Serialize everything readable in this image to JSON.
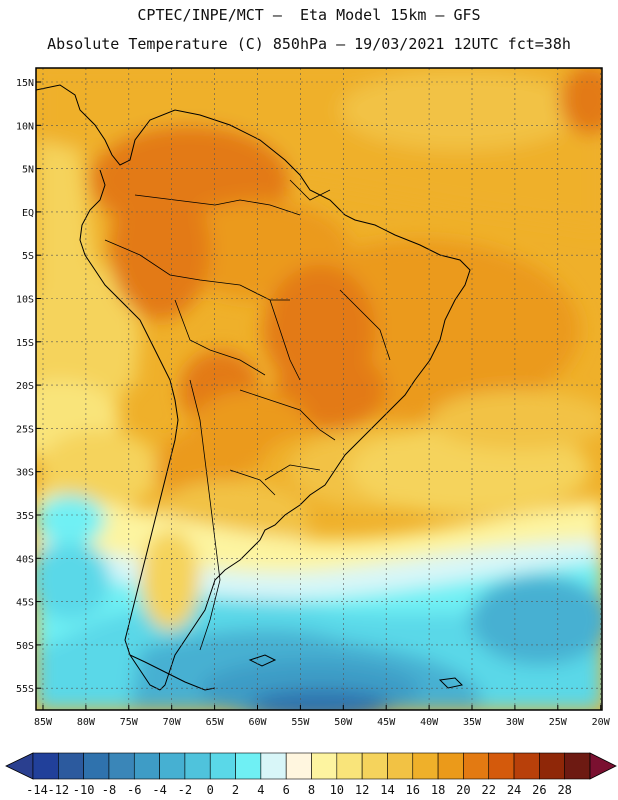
{
  "header": {
    "line1": "CPTEC/INPE/MCT –  Eta Model 15km – GFS",
    "line2": "Absolute Temperature (C) 850hPa – 19/03/2021 12UTC fct=38h"
  },
  "map": {
    "region": "South America",
    "lat_labels": [
      "15N",
      "10N",
      "5N",
      "EQ",
      "5S",
      "10S",
      "15S",
      "20S",
      "25S",
      "30S",
      "35S",
      "40S",
      "45S",
      "50S",
      "55S"
    ],
    "lon_labels": [
      "85W",
      "80W",
      "75W",
      "70W",
      "65W",
      "60W",
      "55W",
      "50W",
      "45W",
      "40W",
      "35W",
      "30W",
      "25W",
      "20W"
    ]
  },
  "colorbar": {
    "labels": [
      "-14",
      "-12",
      "-10",
      "-8",
      "-6",
      "-4",
      "-2",
      "0",
      "2",
      "4",
      "6",
      "8",
      "10",
      "12",
      "14",
      "16",
      "18",
      "20",
      "22",
      "24",
      "26",
      "28"
    ],
    "colors": [
      "#21409a",
      "#2c5a9e",
      "#2f72ad",
      "#3a86b8",
      "#3e9cc6",
      "#46b0d2",
      "#4fc3dc",
      "#5ad8e8",
      "#6ff0f4",
      "#d8f6f8",
      "#fff6df",
      "#fdf4a0",
      "#f9e47a",
      "#f5d35c",
      "#f2c244",
      "#efb02a",
      "#eb9a1a",
      "#e37a12",
      "#d45a0c",
      "#b8400a",
      "#8f2708",
      "#6d1a12"
    ],
    "min_color": "#2a3f8f",
    "max_color": "#7a1030"
  }
}
